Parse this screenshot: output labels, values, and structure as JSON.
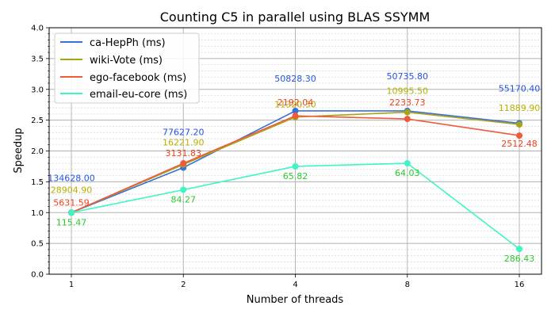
{
  "chart_data": {
    "type": "line",
    "title": "Counting C5 in parallel using BLAS SSYMM",
    "xlabel": "Number of threads",
    "ylabel": "Speedup",
    "x": [
      1,
      2,
      4,
      8,
      16
    ],
    "x_tick_labels": [
      "1",
      "2",
      "4",
      "8",
      "16"
    ],
    "x_scale": "log2",
    "ylim": [
      0.0,
      4.0
    ],
    "y_ticks": [
      0.0,
      0.5,
      1.0,
      1.5,
      2.0,
      2.5,
      3.0,
      3.5,
      4.0
    ],
    "y_tick_labels": [
      "0.0",
      "0.5",
      "1.0",
      "1.5",
      "2.0",
      "2.5",
      "3.0",
      "3.5",
      "4.0"
    ],
    "grid": true,
    "legend_position": "top-left",
    "series": [
      {
        "name": "ca-HepPh (ms)",
        "color": "#3b6fd8",
        "label_color": "#2255e0",
        "values": [
          1.0,
          1.73,
          2.65,
          2.65,
          2.45
        ],
        "labels": [
          "134628.00",
          "77627.20",
          "50828.30",
          "50735.80",
          "55170.40"
        ],
        "label_dy": [
          -44,
          -45,
          -41,
          -44,
          -44
        ]
      },
      {
        "name": "wiki-Vote (ms)",
        "color": "#a7a41a",
        "label_color": "#b5b000",
        "values": [
          1.0,
          1.78,
          2.55,
          2.63,
          2.43
        ],
        "labels": [
          "28904.90",
          "16221.90",
          "11320.30",
          "10995.50",
          "11889.90"
        ],
        "label_dy": [
          -29,
          -28,
          -16,
          -27,
          -21
        ]
      },
      {
        "name": "ego-facebook (ms)",
        "color": "#ee5a3a",
        "label_color": "#f04020",
        "values": [
          1.0,
          1.8,
          2.57,
          2.52,
          2.25
        ],
        "labels": [
          "5631.59",
          "3131.83",
          "2192.04",
          "2233.73",
          "2512.48"
        ],
        "label_dy": [
          -13,
          -13,
          -17,
          -21,
          10
        ]
      },
      {
        "name": "email-eu-core (ms)",
        "color": "#3ef5c4",
        "label_color": "#2ec82e",
        "values": [
          1.0,
          1.37,
          1.75,
          1.8,
          0.41
        ],
        "labels": [
          "115.47",
          "84.27",
          "65.82",
          "64.03",
          "286.43"
        ],
        "label_dy": [
          12,
          12,
          12,
          12,
          12
        ]
      }
    ]
  }
}
